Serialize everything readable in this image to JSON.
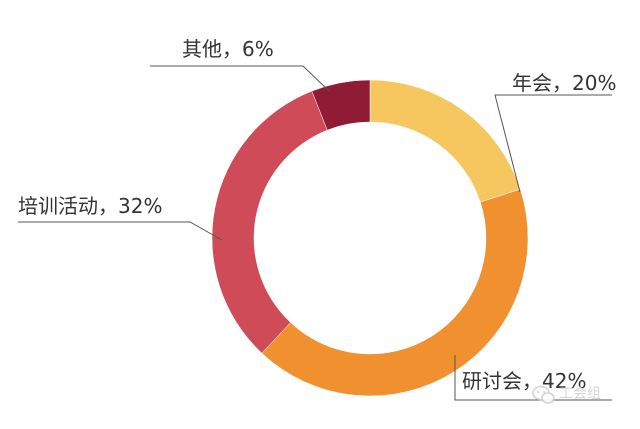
{
  "chart_data": {
    "type": "pie",
    "style": "donut",
    "slices": [
      {
        "name": "年会",
        "value": 20,
        "label": "年会，20%",
        "color": "#f6c65f"
      },
      {
        "name": "研讨会",
        "value": 42,
        "label": "研讨会，42%",
        "color": "#f0902f"
      },
      {
        "name": "培训活动",
        "value": 32,
        "label": "培训活动，32%",
        "color": "#cf4b57"
      },
      {
        "name": "其他",
        "value": 6,
        "label": "其他，6%",
        "color": "#8f1b34"
      }
    ]
  },
  "watermark": {
    "text": "工会组",
    "icon": "wechat-icon"
  }
}
